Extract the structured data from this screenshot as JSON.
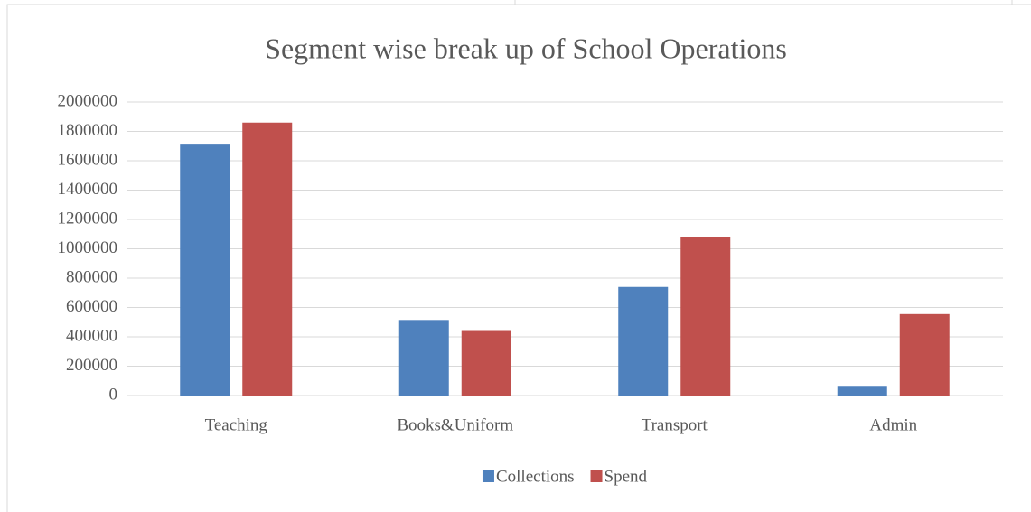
{
  "chart_data": {
    "type": "bar",
    "title": "Segment wise break up of School Operations",
    "categories": [
      "Teaching",
      "Books&Uniform",
      "Transport",
      "Admin"
    ],
    "series": [
      {
        "name": "Collections",
        "color": "#4f81bd",
        "values": [
          1710000,
          515000,
          740000,
          60000
        ]
      },
      {
        "name": "Spend",
        "color": "#c0504d",
        "values": [
          1860000,
          440000,
          1080000,
          555000
        ]
      }
    ],
    "ylim": [
      0,
      2000000
    ],
    "yticks": [
      0,
      200000,
      400000,
      600000,
      800000,
      1000000,
      1200000,
      1400000,
      1600000,
      1800000,
      2000000
    ],
    "grid": true,
    "legend": "bottom"
  }
}
